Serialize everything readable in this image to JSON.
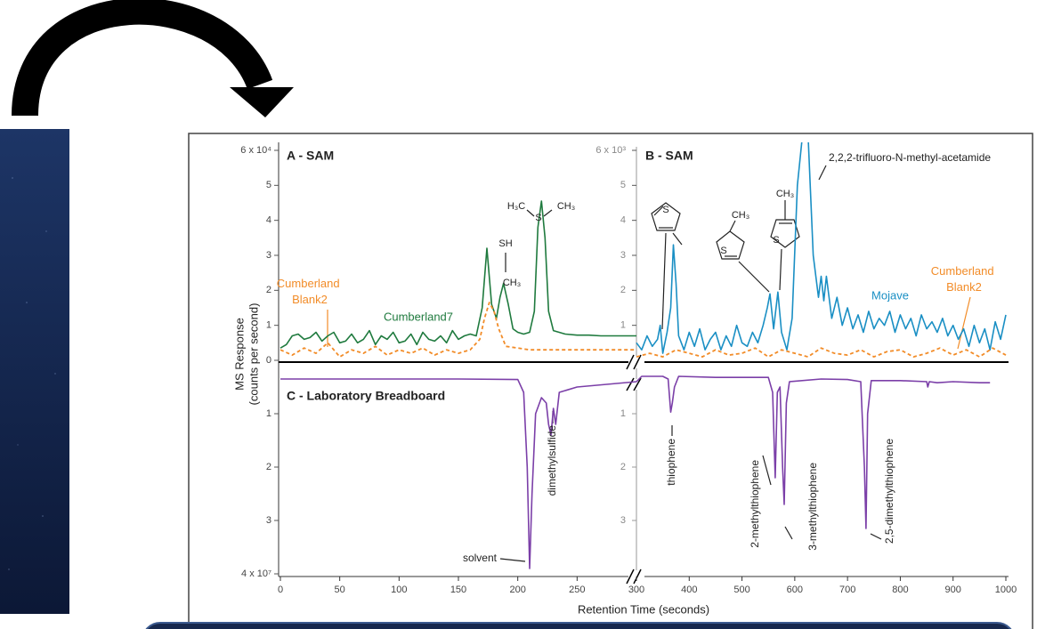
{
  "figure": {
    "x_label": "Retention Time (seconds)",
    "y_label": "MS Response",
    "y_label_unit": "(counts per second)",
    "xticks": [
      0,
      50,
      100,
      150,
      200,
      250,
      300,
      400,
      500,
      600,
      700,
      800,
      900,
      1000
    ]
  },
  "chart_data": [
    {
      "type": "line",
      "title": "A - SAM",
      "xlim": [
        0,
        300
      ],
      "ylim": [
        0,
        6
      ],
      "yticks": [
        0,
        1,
        2,
        3,
        4,
        5,
        {
          "value": 6,
          "label": "6 x 10⁴"
        }
      ],
      "series": [
        {
          "name": "Cumberland7",
          "color": "#1f7a3e",
          "line_style": "solid",
          "x": [
            0,
            5,
            10,
            15,
            20,
            25,
            30,
            35,
            40,
            45,
            50,
            55,
            60,
            65,
            70,
            75,
            80,
            85,
            90,
            95,
            100,
            105,
            110,
            115,
            120,
            125,
            130,
            135,
            140,
            145,
            150,
            155,
            160,
            165,
            170,
            174,
            178,
            182,
            185,
            188,
            192,
            196,
            200,
            205,
            210,
            214,
            217,
            220,
            223,
            226,
            230,
            240,
            250,
            260,
            270,
            280,
            290,
            300
          ],
          "values": [
            0.35,
            0.45,
            0.7,
            0.75,
            0.6,
            0.65,
            0.8,
            0.55,
            0.7,
            0.8,
            0.5,
            0.55,
            0.75,
            0.5,
            0.6,
            0.85,
            0.45,
            0.7,
            0.6,
            0.8,
            0.5,
            0.55,
            0.75,
            0.45,
            0.8,
            0.6,
            0.55,
            0.7,
            0.5,
            0.85,
            0.6,
            0.7,
            0.75,
            0.7,
            1.5,
            3.2,
            1.6,
            1.2,
            1.8,
            2.2,
            1.6,
            0.9,
            0.8,
            0.75,
            0.8,
            1.4,
            3.8,
            4.55,
            3.5,
            1.4,
            0.85,
            0.75,
            0.72,
            0.72,
            0.7,
            0.7,
            0.7,
            0.7
          ]
        },
        {
          "name": "Cumberland Blank2",
          "color": "#f28c28",
          "line_style": "dashed",
          "x": [
            0,
            10,
            20,
            30,
            40,
            50,
            60,
            70,
            80,
            90,
            100,
            110,
            120,
            130,
            140,
            150,
            160,
            168,
            172,
            176,
            180,
            184,
            190,
            200,
            210,
            220,
            230,
            240,
            250,
            260,
            270,
            280,
            290,
            300
          ],
          "values": [
            0.3,
            0.15,
            0.35,
            0.2,
            0.5,
            0.1,
            0.3,
            0.2,
            0.4,
            0.15,
            0.3,
            0.2,
            0.35,
            0.15,
            0.3,
            0.2,
            0.3,
            0.6,
            1.2,
            1.65,
            1.4,
            0.9,
            0.4,
            0.35,
            0.3,
            0.3,
            0.3,
            0.3,
            0.3,
            0.3,
            0.3,
            0.3,
            0.3,
            0.3
          ]
        }
      ],
      "annotations": [
        "SH",
        "CH₃",
        "H₃C",
        "S",
        "CH₃"
      ]
    },
    {
      "type": "line",
      "title": "B - SAM",
      "xlim": [
        300,
        1000
      ],
      "ylim": [
        0,
        6
      ],
      "yticks": [
        1,
        2,
        3,
        4,
        5,
        {
          "value": 6,
          "label": "6 x 10³"
        }
      ],
      "series": [
        {
          "name": "Mojave",
          "color": "#1a8fc4",
          "line_style": "solid",
          "x": [
            300,
            310,
            320,
            330,
            340,
            345,
            350,
            358,
            365,
            370,
            375,
            380,
            390,
            400,
            410,
            420,
            430,
            440,
            450,
            460,
            470,
            480,
            490,
            500,
            510,
            520,
            530,
            540,
            548,
            553,
            560,
            568,
            575,
            585,
            595,
            605,
            615,
            625,
            635,
            645,
            650,
            655,
            660,
            670,
            680,
            690,
            700,
            710,
            720,
            730,
            740,
            750,
            760,
            770,
            780,
            790,
            800,
            810,
            820,
            830,
            840,
            850,
            860,
            870,
            880,
            890,
            900,
            910,
            920,
            930,
            940,
            950,
            960,
            970,
            980,
            990,
            1000
          ],
          "values": [
            0.5,
            0.3,
            0.7,
            0.4,
            0.6,
            1.0,
            0.2,
            0.8,
            1.5,
            3.3,
            2.2,
            0.7,
            0.3,
            0.8,
            0.4,
            0.9,
            0.3,
            0.6,
            0.8,
            0.3,
            0.7,
            0.4,
            1.0,
            0.5,
            0.4,
            0.8,
            0.5,
            1.0,
            1.5,
            1.9,
            0.9,
            1.95,
            0.8,
            0.3,
            1.2,
            5.0,
            6.5,
            6.5,
            3.0,
            1.8,
            2.4,
            1.7,
            2.4,
            1.2,
            1.8,
            1.0,
            1.5,
            0.9,
            1.3,
            0.8,
            1.4,
            0.9,
            1.2,
            1.0,
            1.4,
            0.8,
            1.3,
            0.9,
            1.2,
            0.7,
            1.3,
            0.9,
            1.1,
            0.8,
            1.2,
            0.7,
            1.0,
            0.6,
            0.9,
            0.4,
            1.0,
            0.5,
            0.9,
            0.3,
            1.1,
            0.6,
            1.3
          ]
        },
        {
          "name": "Cumberland Blank2",
          "color": "#f28c28",
          "line_style": "dashed",
          "x": [
            300,
            325,
            350,
            375,
            400,
            425,
            450,
            475,
            500,
            525,
            550,
            575,
            600,
            625,
            650,
            675,
            700,
            725,
            750,
            775,
            800,
            825,
            850,
            875,
            900,
            925,
            950,
            975,
            1000
          ],
          "values": [
            0.1,
            0.2,
            0.1,
            0.3,
            0.2,
            0.1,
            0.3,
            0.15,
            0.2,
            0.35,
            0.1,
            0.3,
            0.2,
            0.1,
            0.35,
            0.2,
            0.15,
            0.3,
            0.1,
            0.25,
            0.3,
            0.1,
            0.2,
            0.35,
            0.15,
            0.3,
            0.1,
            0.35,
            0.15
          ]
        }
      ],
      "annotations": [
        "S",
        "CH₃",
        "S",
        "CH₃",
        "S",
        "2,2,2-trifluoro-N-methyl-acetamide"
      ]
    },
    {
      "type": "line",
      "title": "C - Laboratory Breadboard",
      "xlim": [
        0,
        1000
      ],
      "ylim": [
        4,
        0
      ],
      "yticks": [
        1,
        2,
        3,
        {
          "value": 4,
          "label": "4 x 10⁷"
        }
      ],
      "y2lim": [
        4,
        0
      ],
      "y2ticks": [
        1,
        2,
        3
      ],
      "series": [
        {
          "name": null,
          "color": "#7b3fa8",
          "line_style": "solid",
          "x": [
            0,
            50,
            100,
            150,
            200,
            205,
            208,
            210,
            212,
            215,
            220,
            224,
            226,
            228,
            230,
            232,
            235,
            250,
            300,
            310,
            350,
            360,
            365,
            368,
            372,
            380,
            450,
            500,
            550,
            558,
            563,
            567,
            572,
            577,
            580,
            584,
            590,
            650,
            700,
            725,
            732,
            735,
            738,
            745,
            800,
            850,
            852,
            855,
            870,
            900,
            950,
            970
          ],
          "values": [
            0.35,
            0.35,
            0.35,
            0.35,
            0.36,
            0.6,
            2.0,
            3.9,
            2.5,
            1.0,
            0.7,
            0.8,
            1.2,
            1.4,
            0.9,
            1.2,
            0.6,
            0.5,
            0.4,
            0.3,
            0.3,
            0.35,
            0.97,
            0.8,
            0.5,
            0.3,
            0.32,
            0.32,
            0.32,
            0.6,
            2.2,
            0.6,
            0.5,
            2.0,
            2.7,
            0.8,
            0.4,
            0.35,
            0.36,
            0.4,
            2.0,
            3.15,
            1.0,
            0.38,
            0.38,
            0.4,
            0.5,
            0.4,
            0.42,
            0.4,
            0.42,
            0.42
          ]
        }
      ],
      "annotations": [
        "solvent",
        "dimethylsulfide",
        "thiophene",
        "2-methylthiophene",
        "3-methylthiophene",
        "2,5-dimethylthiophene"
      ]
    }
  ]
}
